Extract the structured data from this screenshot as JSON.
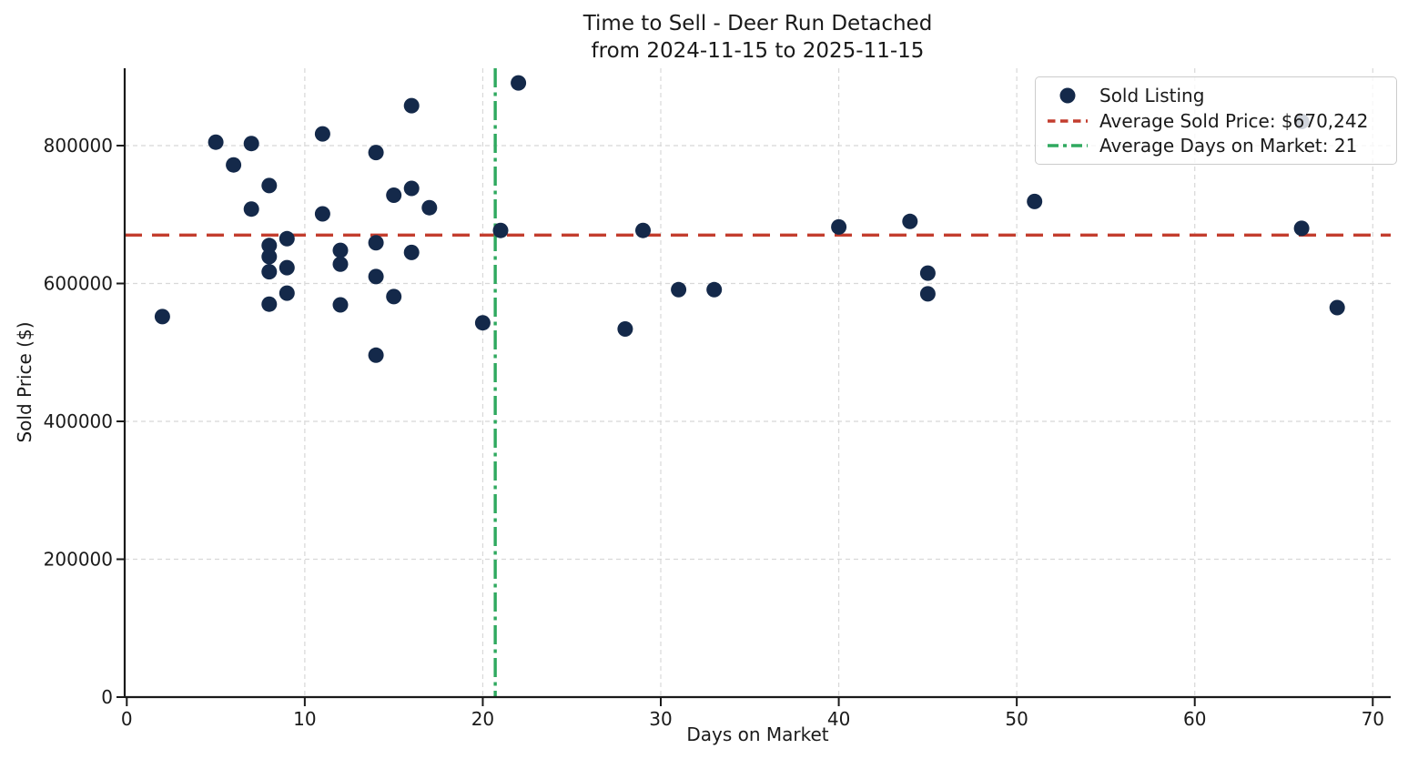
{
  "title": {
    "line1": "Time to Sell - Deer Run Detached",
    "line2": "from 2024-11-15 to 2025-11-15"
  },
  "axes": {
    "x_label": "Days on Market",
    "y_label": "Sold Price ($)",
    "x_ticks": [
      0,
      10,
      20,
      30,
      40,
      50,
      60,
      70
    ],
    "y_ticks": [
      0,
      200000,
      400000,
      600000,
      800000
    ]
  },
  "legend": {
    "items": [
      {
        "label": "Sold Listing",
        "type": "point"
      },
      {
        "label": "Average Sold Price: $670,242",
        "type": "dashed"
      },
      {
        "label": "Average Days on Market: 21",
        "type": "dashdot"
      }
    ]
  },
  "colors": {
    "point": "#14294a",
    "avg_price_line": "#c33d2e",
    "avg_days_line": "#2fa95f",
    "grid": "#d8d8d8",
    "axis": "#1a1a1a",
    "text": "#1a1a1a",
    "legend_border": "#cccccc"
  },
  "chart_data": {
    "type": "scatter",
    "title": "Time to Sell - Deer Run Detached from 2024-11-15 to 2025-11-15",
    "xlabel": "Days on Market",
    "ylabel": "Sold Price ($)",
    "xlim": [
      0,
      71
    ],
    "ylim": [
      0,
      912000
    ],
    "grid": true,
    "legend_position": "upper right",
    "x_ticks": [
      0,
      10,
      20,
      30,
      40,
      50,
      60,
      70
    ],
    "y_ticks": [
      0,
      200000,
      400000,
      600000,
      800000
    ],
    "avg_sold_price": 670242,
    "avg_sold_price_label": "Average Sold Price: $670,242",
    "avg_days_on_market": 21,
    "avg_days_line_x": 20.7,
    "avg_days_label": "Average Days on Market: 21",
    "series": [
      {
        "name": "Sold Listing",
        "points": [
          [
            2,
            552000
          ],
          [
            5,
            805000
          ],
          [
            6,
            772000
          ],
          [
            7,
            803000
          ],
          [
            7,
            708000
          ],
          [
            8,
            742000
          ],
          [
            8,
            655000
          ],
          [
            8,
            639000
          ],
          [
            8,
            617000
          ],
          [
            8,
            570000
          ],
          [
            9,
            665000
          ],
          [
            9,
            623000
          ],
          [
            9,
            586000
          ],
          [
            11,
            817000
          ],
          [
            11,
            701000
          ],
          [
            12,
            648000
          ],
          [
            12,
            628000
          ],
          [
            12,
            569000
          ],
          [
            14,
            790000
          ],
          [
            14,
            659000
          ],
          [
            14,
            610000
          ],
          [
            14,
            496000
          ],
          [
            15,
            728000
          ],
          [
            15,
            581000
          ],
          [
            16,
            858000
          ],
          [
            16,
            738000
          ],
          [
            16,
            645000
          ],
          [
            17,
            710000
          ],
          [
            20,
            543000
          ],
          [
            21,
            677000
          ],
          [
            22,
            891000
          ],
          [
            28,
            534000
          ],
          [
            29,
            677000
          ],
          [
            31,
            591000
          ],
          [
            33,
            591000
          ],
          [
            40,
            682000
          ],
          [
            44,
            690000
          ],
          [
            45,
            615000
          ],
          [
            45,
            585000
          ],
          [
            51,
            719000
          ],
          [
            66,
            835000
          ],
          [
            66,
            680000
          ],
          [
            68,
            565000
          ]
        ]
      }
    ]
  }
}
